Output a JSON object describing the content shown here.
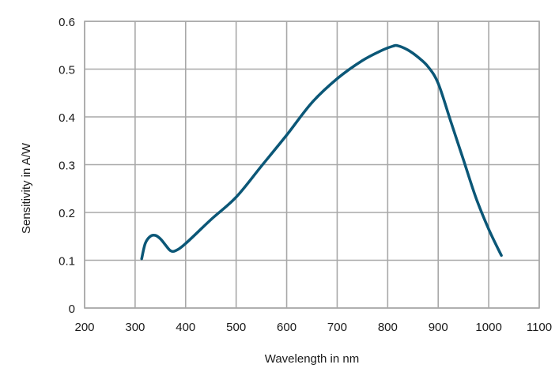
{
  "chart_data": {
    "type": "line",
    "xlabel": "Wavelength in nm",
    "ylabel": "Sensitivity in A/W",
    "xlim": [
      200,
      1100
    ],
    "ylim": [
      0,
      0.6
    ],
    "x_ticks": [
      "200",
      "300",
      "400",
      "500",
      "600",
      "700",
      "800",
      "900",
      "1000",
      "1100"
    ],
    "y_ticks": [
      "0",
      "0.1",
      "0.2",
      "0.3",
      "0.4",
      "0.5",
      "0.6"
    ],
    "grid": true,
    "series": [
      {
        "color": "#0b5777",
        "x": [
          313,
          320,
          330,
          340,
          350,
          360,
          370,
          380,
          400,
          450,
          500,
          550,
          600,
          650,
          700,
          750,
          790,
          810,
          820,
          840,
          860,
          880,
          900,
          925,
          950,
          975,
          1000,
          1025
        ],
        "y": [
          0.103,
          0.135,
          0.15,
          0.152,
          0.145,
          0.132,
          0.12,
          0.12,
          0.135,
          0.185,
          0.232,
          0.297,
          0.362,
          0.43,
          0.48,
          0.518,
          0.54,
          0.548,
          0.549,
          0.54,
          0.525,
          0.505,
          0.47,
          0.39,
          0.31,
          0.23,
          0.165,
          0.11
        ]
      }
    ]
  }
}
